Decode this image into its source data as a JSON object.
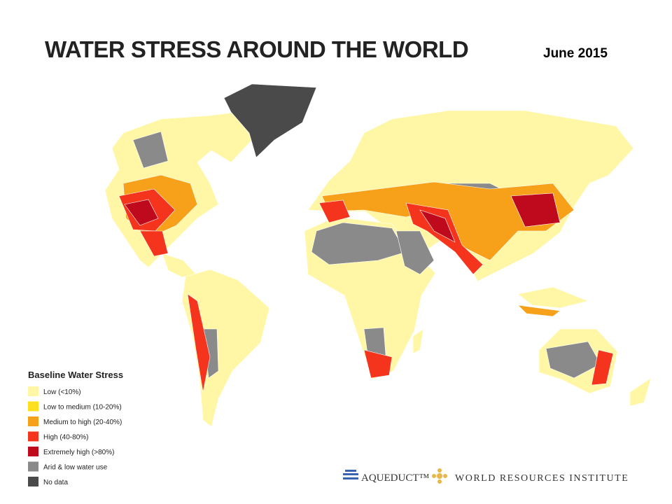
{
  "header": {
    "title": "WATER STRESS AROUND THE WORLD",
    "date": "June 2015"
  },
  "legend": {
    "title": "Baseline Water Stress",
    "items": [
      {
        "label": "Low (<10%)",
        "color": "#fff7a6"
      },
      {
        "label": "Low to medium (10-20%)",
        "color": "#ffe01f"
      },
      {
        "label": "Medium to high (20-40%)",
        "color": "#f7a11a"
      },
      {
        "label": "High (40-80%)",
        "color": "#f4341c"
      },
      {
        "label": "Extremely high (>80%)",
        "color": "#be0a1c"
      },
      {
        "label": "Arid & low water use",
        "color": "#8a8a8a"
      },
      {
        "label": "No data",
        "color": "#4a4a4a"
      }
    ]
  },
  "footer": {
    "aqueduct": "AQUEDUCT™",
    "wri": "WORLD RESOURCES INSTITUTE"
  }
}
